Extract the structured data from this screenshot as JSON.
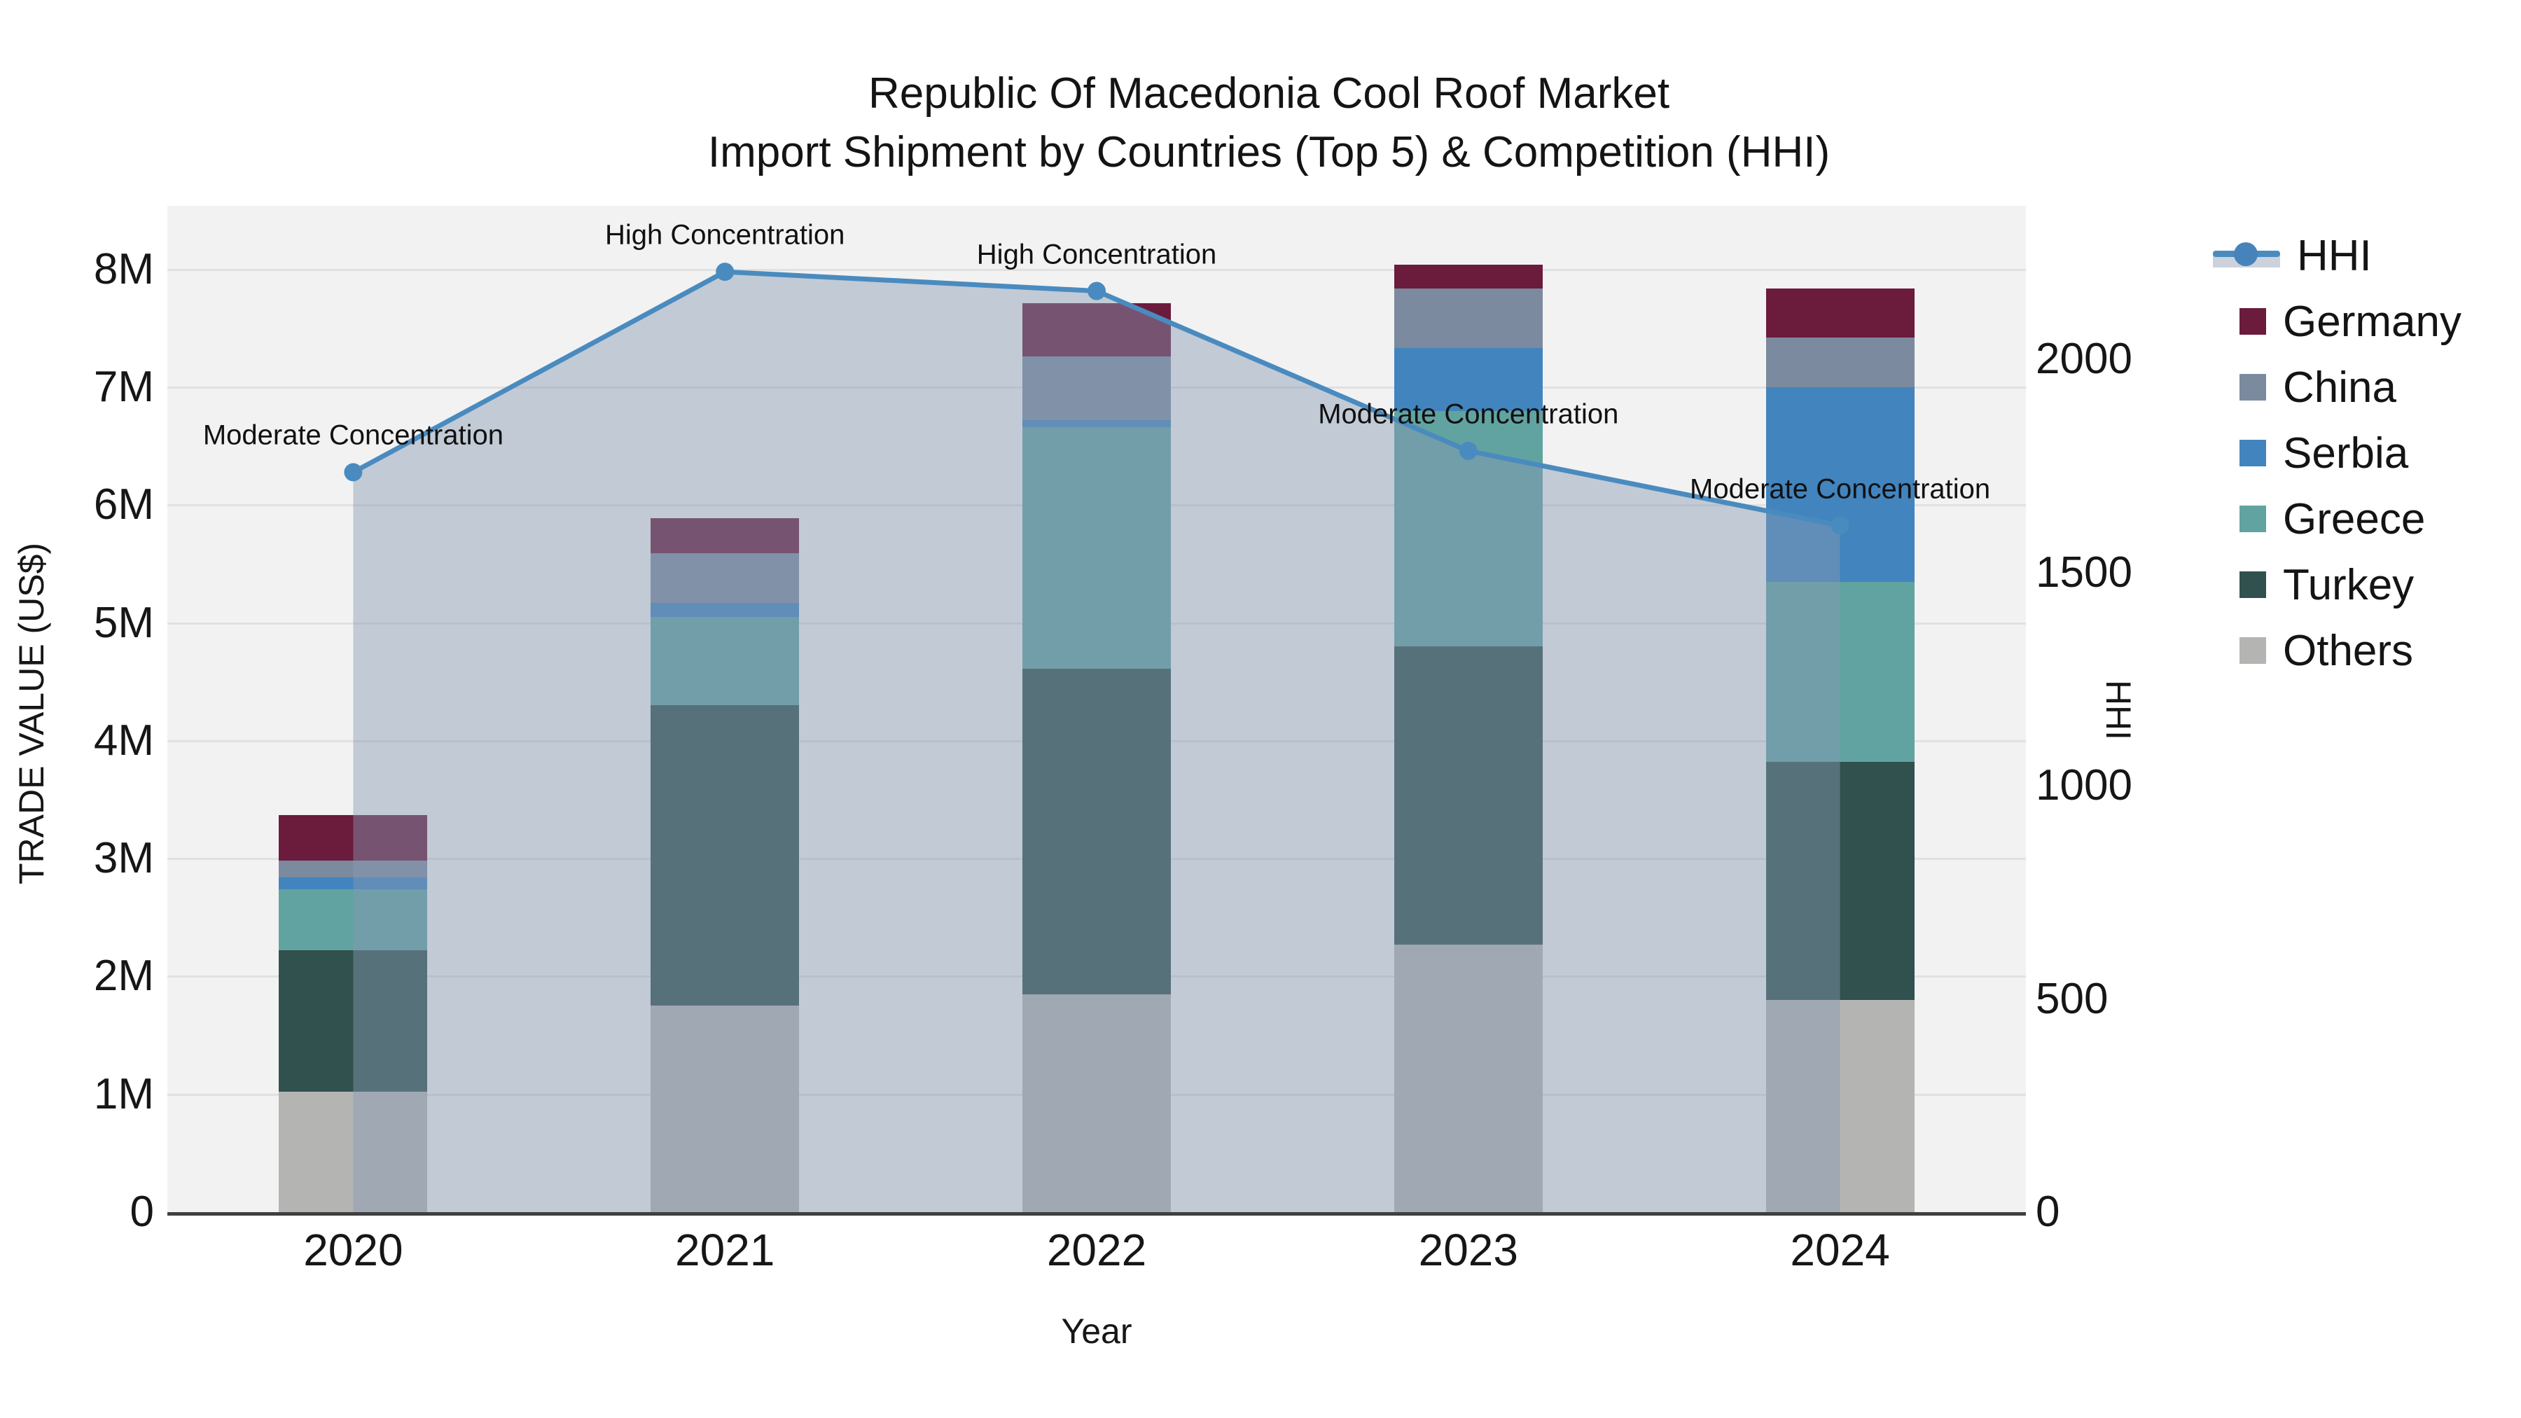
{
  "title": {
    "line1": "Republic Of Macedonia Cool Roof Market",
    "line2": "Import Shipment by Countries (Top 5) & Competition (HHI)"
  },
  "axes": {
    "x": {
      "title": "Year",
      "ticks": [
        "2020",
        "2021",
        "2022",
        "2023",
        "2024"
      ]
    },
    "y_left": {
      "title": "TRADE VALUE (US$)",
      "ticks": [
        "0",
        "1M",
        "2M",
        "3M",
        "4M",
        "5M",
        "6M",
        "7M",
        "8M"
      ]
    },
    "y_right": {
      "title": "HHI",
      "ticks": [
        "0",
        "500",
        "1000",
        "1500",
        "2000"
      ]
    }
  },
  "legend": {
    "items": [
      {
        "label": "HHI",
        "swatch": "line"
      },
      {
        "label": "Germany",
        "swatch": "square"
      },
      {
        "label": "China",
        "swatch": "square"
      },
      {
        "label": "Serbia",
        "swatch": "square"
      },
      {
        "label": "Greece",
        "swatch": "square"
      },
      {
        "label": "Turkey",
        "swatch": "square"
      },
      {
        "label": "Others",
        "swatch": "square"
      }
    ]
  },
  "colors": {
    "HHI": "#4a8bbf",
    "HHI_fill": "rgba(135,152,179,0.45)",
    "Germany": "#6b1b3c",
    "China": "#7b8a9e",
    "Serbia": "#4284bd",
    "Greece": "#61a3a1",
    "Turkey": "#30514d",
    "Others": "#b4b5b2",
    "plot_bg": "#f2f2f2",
    "grid": "#e1e1e1"
  },
  "chart_data": {
    "type": "bar",
    "subtype": "stacked bars (trade value, left axis) + HHI line with area fill (right axis)",
    "title": "Republic Of Macedonia Cool Roof Market — Import Shipment by Countries (Top 5) & Competition (HHI)",
    "categories": [
      "2020",
      "2021",
      "2022",
      "2023",
      "2024"
    ],
    "unit": "million US$",
    "series": [
      {
        "name": "Others",
        "values": [
          1.02,
          1.75,
          1.85,
          2.27,
          1.8
        ]
      },
      {
        "name": "Turkey",
        "values": [
          1.2,
          2.55,
          2.76,
          2.53,
          2.02
        ]
      },
      {
        "name": "Greece",
        "values": [
          0.52,
          0.75,
          2.05,
          2.0,
          1.53
        ]
      },
      {
        "name": "Serbia",
        "values": [
          0.1,
          0.12,
          0.06,
          0.53,
          1.65
        ]
      },
      {
        "name": "China",
        "values": [
          0.14,
          0.42,
          0.54,
          0.51,
          0.42
        ]
      },
      {
        "name": "Germany",
        "values": [
          0.39,
          0.3,
          0.45,
          0.2,
          0.42
        ]
      }
    ],
    "bar_totals": [
      3.37,
      5.89,
      7.71,
      8.04,
      7.84
    ],
    "line_series": {
      "name": "HHI",
      "axis": "right",
      "values": [
        1735,
        2205,
        2160,
        1785,
        1610
      ]
    },
    "annotations": [
      {
        "x": "2020",
        "text": "Moderate Concentration"
      },
      {
        "x": "2021",
        "text": "High Concentration"
      },
      {
        "x": "2022",
        "text": "High Concentration"
      },
      {
        "x": "2023",
        "text": "Moderate Concentration"
      },
      {
        "x": "2024",
        "text": "Moderate Concentration"
      }
    ],
    "xlabel": "Year",
    "ylabel_left": "TRADE VALUE (US$)",
    "ylabel_right": "HHI",
    "ylim_left": [
      0,
      8.54
    ],
    "ylim_right": [
      0,
      2360
    ],
    "grid": true,
    "legend_position": "right"
  }
}
